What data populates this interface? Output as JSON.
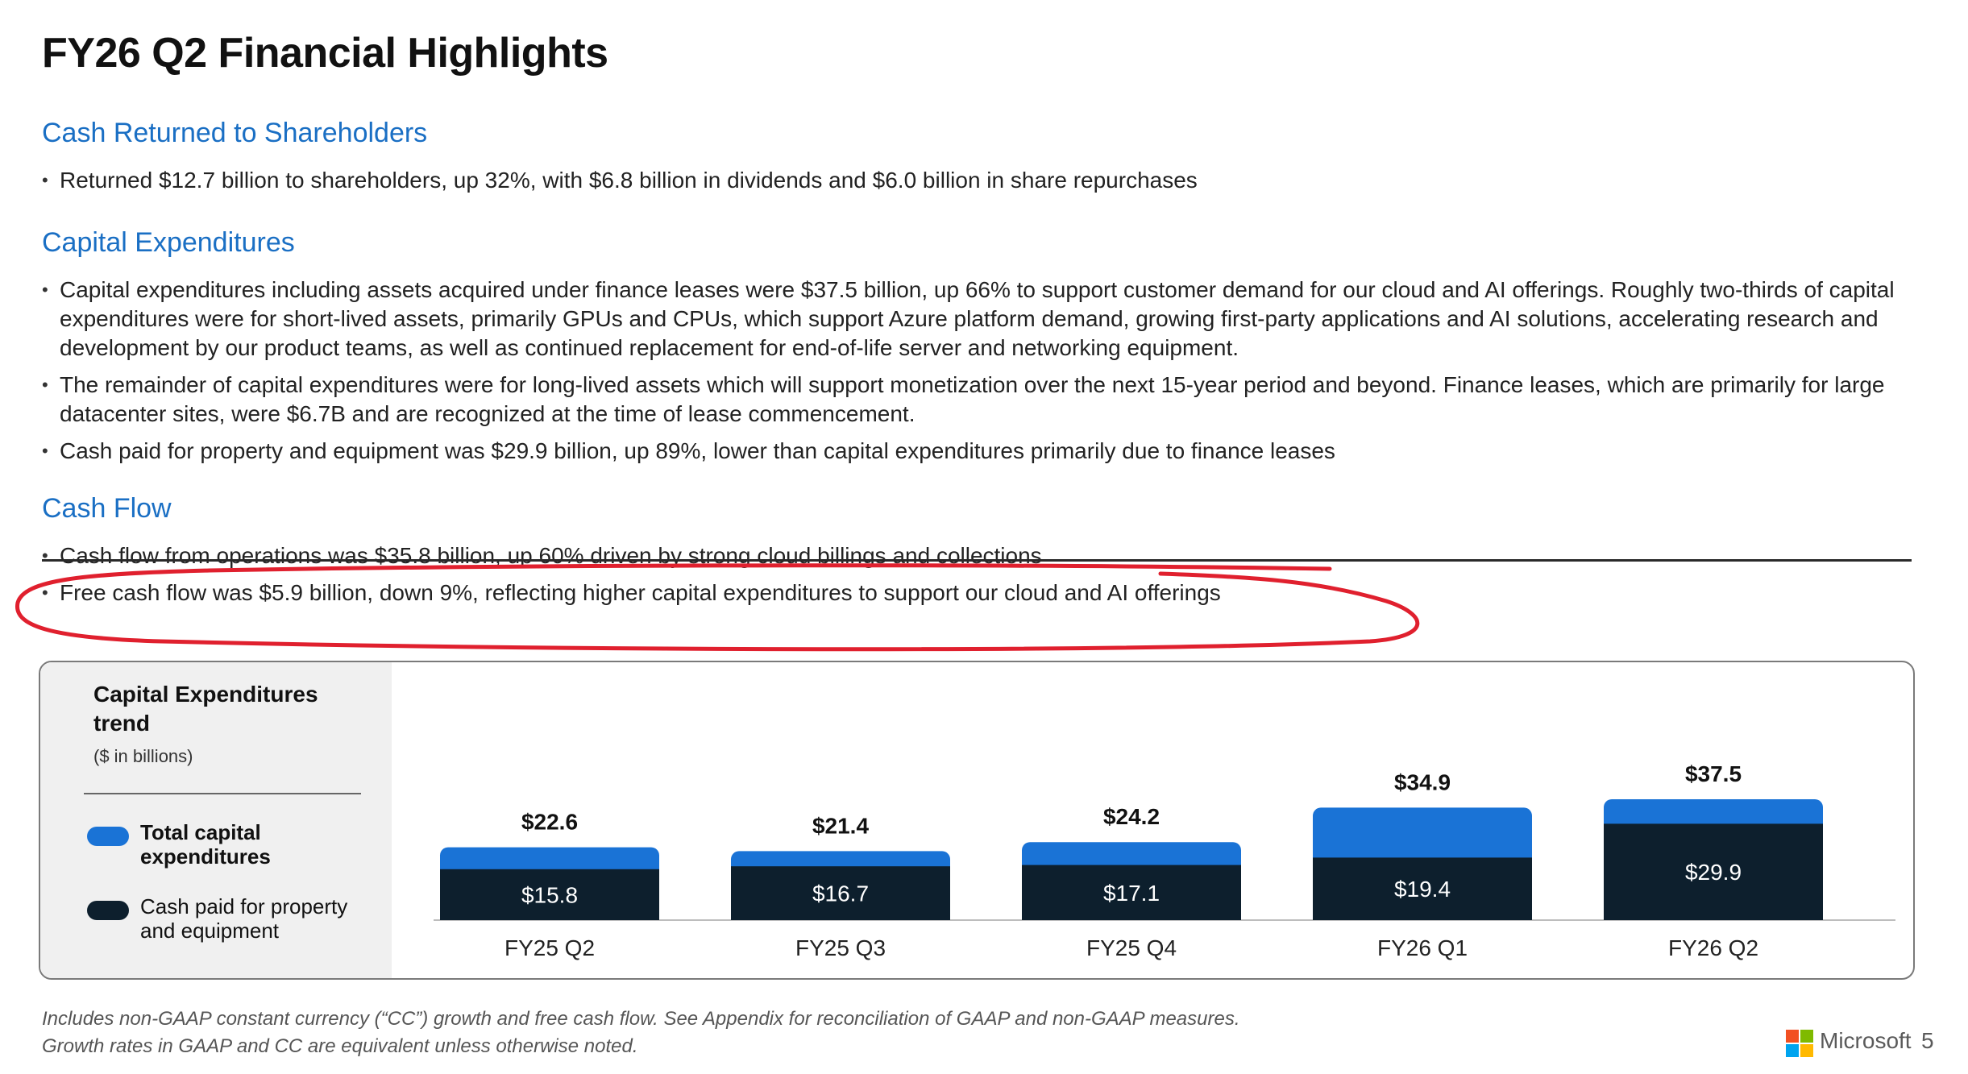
{
  "slide": {
    "title": "FY26 Q2 Financial Highlights"
  },
  "sections": {
    "cash_returned": {
      "heading": "Cash Returned to Shareholders",
      "bullets": [
        "Returned $12.7 billion to shareholders, up 32%, with $6.8 billion in dividends and $6.0 billion in share repurchases"
      ]
    },
    "capex": {
      "heading": "Capital Expenditures",
      "bullets": [
        "Capital expenditures including assets acquired under finance leases were $37.5 billion, up 66% to support customer demand for our cloud and AI offerings. Roughly two-thirds of capital expenditures were for short-lived assets, primarily GPUs and CPUs, which support Azure platform demand, growing first-party applications and AI solutions, accelerating research and development by our product teams, as well as continued replacement for end-of-life server and networking equipment.",
        "The remainder of capital expenditures were for long-lived assets which will support monetization over the next 15-year period and beyond. Finance leases, which are primarily for large datacenter sites, were $6.7B and are recognized at the time of lease commencement.",
        "Cash paid for property and equipment was $29.9 billion, up 89%, lower than capital expenditures primarily due to finance leases"
      ]
    },
    "cash_flow": {
      "heading": "Cash Flow",
      "bullets": [
        "Cash flow from operations was $35.8 billion, up 60% driven by strong cloud billings and collections",
        "Free cash flow was $5.9 billion, down 9%, reflecting higher capital expenditures to support our cloud and AI offerings"
      ]
    }
  },
  "colors": {
    "heading_blue": "#1a6fc4",
    "bar_total": "#1a73d6",
    "bar_cash": "#0d1f2d",
    "annotation_red": "#e0202e"
  },
  "legend": {
    "title": "Capital Expenditures trend",
    "subtitle": "($ in billions)",
    "items": [
      {
        "label": "Total capital expenditures",
        "color": "#1a73d6"
      },
      {
        "label": "Cash paid for property and equipment",
        "color": "#0d1f2d"
      }
    ]
  },
  "chart_data": {
    "type": "bar",
    "title": "Capital Expenditures trend",
    "subtitle": "($ in billions)",
    "categories": [
      "FY25 Q2",
      "FY25 Q3",
      "FY25 Q4",
      "FY26 Q1",
      "FY26 Q2"
    ],
    "series": [
      {
        "name": "Total capital expenditures",
        "values": [
          22.6,
          21.4,
          24.2,
          34.9,
          37.5
        ]
      },
      {
        "name": "Cash paid for property and equipment",
        "values": [
          15.8,
          16.7,
          17.1,
          19.4,
          29.9
        ]
      }
    ],
    "value_labels_total": [
      "$22.6",
      "$21.4",
      "$24.2",
      "$34.9",
      "$37.5"
    ],
    "value_labels_cash": [
      "$15.8",
      "$16.7",
      "$17.1",
      "$19.4",
      "$29.9"
    ],
    "xlabel": "",
    "ylabel": "",
    "grid": false,
    "legend_position": "left"
  },
  "footnote": {
    "line1": "Includes non-GAAP constant currency (“CC”) growth and free cash flow. See Appendix for reconciliation of GAAP and non-GAAP measures.",
    "line2": "Growth rates in GAAP and CC are equivalent unless otherwise noted."
  },
  "footer": {
    "brand": "Microsoft",
    "page_number": "5"
  }
}
